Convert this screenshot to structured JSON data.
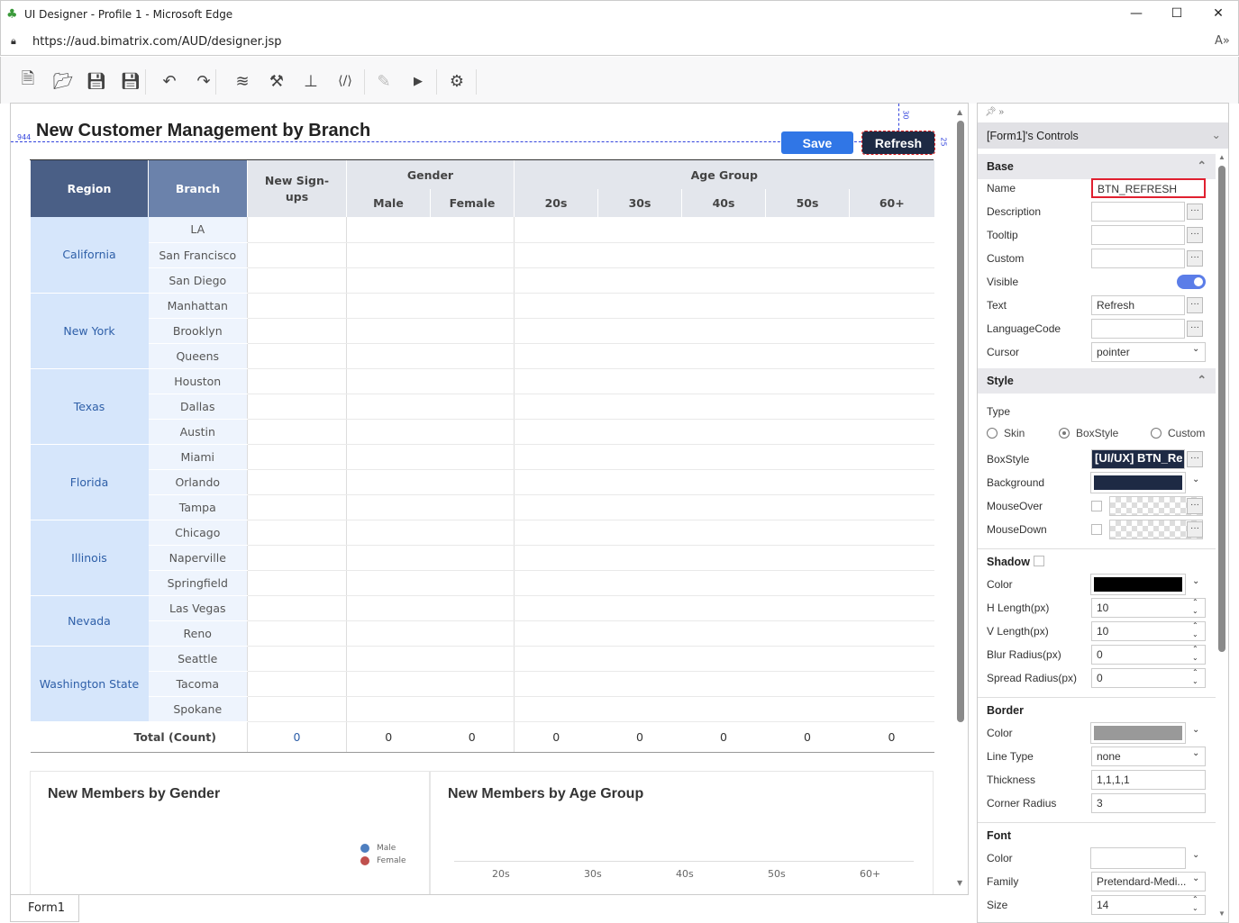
{
  "window": {
    "title": "UI Designer - Profile 1 - Microsoft Edge",
    "url": "https://aud.bimatrix.com/AUD/designer.jsp"
  },
  "toolbar": [
    "new-file-icon",
    "open-folder-icon",
    "save-icon",
    "save-all-icon",
    "undo-icon",
    "redo-icon",
    "database-icon",
    "tools-icon",
    "hierarchy-icon",
    "code-view-icon",
    "edit-icon",
    "run-icon",
    "settings-icon"
  ],
  "form": {
    "title": "New Customer Management by Branch",
    "save_label": "Save",
    "refresh_label": "Refresh",
    "guides": {
      "left": "944",
      "top": "30",
      "height": "25",
      "width": "80"
    },
    "tab": "Form1"
  },
  "table": {
    "headers": {
      "region": "Region",
      "branch": "Branch",
      "signups": "New Sign-ups",
      "gender": "Gender",
      "age": "Age Group",
      "male": "Male",
      "female": "Female",
      "ages": [
        "20s",
        "30s",
        "40s",
        "50s",
        "60+"
      ]
    },
    "groups": [
      {
        "region": "California",
        "branches": [
          "LA",
          "San Francisco",
          "San Diego"
        ]
      },
      {
        "region": "New York",
        "branches": [
          "Manhattan",
          "Brooklyn",
          "Queens"
        ]
      },
      {
        "region": "Texas",
        "branches": [
          "Houston",
          "Dallas",
          "Austin"
        ]
      },
      {
        "region": "Florida",
        "branches": [
          "Miami",
          "Orlando",
          "Tampa"
        ]
      },
      {
        "region": "Illinois",
        "branches": [
          "Chicago",
          "Naperville",
          "Springfield"
        ]
      },
      {
        "region": "Nevada",
        "branches": [
          "Las Vegas",
          "Reno"
        ]
      },
      {
        "region": "Washington State",
        "branches": [
          "Seattle",
          "Tacoma",
          "Spokane"
        ]
      }
    ],
    "total_label": "Total (Count)",
    "totals": [
      "0",
      "0",
      "0",
      "0",
      "0",
      "0",
      "0",
      "0"
    ],
    "colors": {
      "header_dark": "#4a5f86",
      "header_mid": "#6b82ab",
      "region_bg": "#d6e6fb"
    }
  },
  "charts": {
    "gender": {
      "title": "New Members by Gender",
      "legend": [
        {
          "name": "Male",
          "color": "#4e7fc0"
        },
        {
          "name": "Female",
          "color": "#c0504d"
        }
      ]
    },
    "age": {
      "title": "New Members by Age Group",
      "categories": [
        "20s",
        "30s",
        "40s",
        "50s",
        "60+"
      ]
    }
  },
  "panel": {
    "header": "[Form1]'s Controls",
    "base": {
      "title": "Base",
      "rows": [
        {
          "label": "Name",
          "value": "BTN_REFRESH"
        },
        {
          "label": "Description",
          "value": ""
        },
        {
          "label": "Tooltip",
          "value": ""
        },
        {
          "label": "Custom",
          "value": ""
        },
        {
          "label": "Visible",
          "value": ""
        },
        {
          "label": "Text",
          "value": "Refresh"
        },
        {
          "label": "LanguageCode",
          "value": ""
        },
        {
          "label": "Cursor",
          "value": "pointer"
        }
      ]
    },
    "style": {
      "title": "Style",
      "type_label": "Type",
      "types": [
        "Skin",
        "BoxStyle",
        "Custom"
      ],
      "selected_type": "BoxStyle",
      "boxstyle_label": "BoxStyle",
      "boxstyle_value": "[UI/UX] BTN_Re",
      "background_label": "Background",
      "background_color": "#1e2a44",
      "mouseover_label": "MouseOver",
      "mousedown_label": "MouseDown"
    },
    "shadow": {
      "title": "Shadow",
      "rows": [
        {
          "label": "Color",
          "value": ""
        },
        {
          "label": "H Length(px)",
          "value": "10"
        },
        {
          "label": "V Length(px)",
          "value": "10"
        },
        {
          "label": "Blur Radius(px)",
          "value": "0"
        },
        {
          "label": "Spread Radius(px)",
          "value": "0"
        }
      ],
      "color": "#000000"
    },
    "border": {
      "title": "Border",
      "rows": [
        {
          "label": "Color",
          "value": ""
        },
        {
          "label": "Line Type",
          "value": "none"
        },
        {
          "label": "Thickness",
          "value": "1,1,1,1"
        },
        {
          "label": "Corner Radius",
          "value": "3"
        }
      ],
      "color": "#999999"
    },
    "font": {
      "title": "Font",
      "rows": [
        {
          "label": "Color",
          "value": ""
        },
        {
          "label": "Family",
          "value": "Pretendard-Medi..."
        },
        {
          "label": "Size",
          "value": "14"
        }
      ]
    }
  }
}
